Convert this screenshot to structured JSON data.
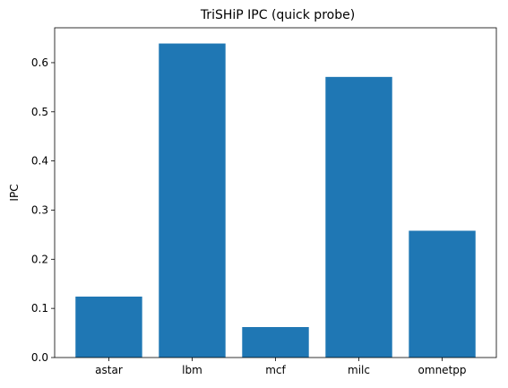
{
  "chart_data": {
    "type": "bar",
    "title": "TriSHiP IPC (quick probe)",
    "xlabel": "",
    "ylabel": "IPC",
    "categories": [
      "astar",
      "lbm",
      "mcf",
      "milc",
      "omnetpp"
    ],
    "values": [
      0.124,
      0.639,
      0.062,
      0.571,
      0.258
    ],
    "ylim": [
      0,
      0.671
    ],
    "yticks": [
      0.0,
      0.1,
      0.2,
      0.3,
      0.4,
      0.5,
      0.6
    ],
    "ytick_labels": [
      "0.0",
      "0.1",
      "0.2",
      "0.3",
      "0.4",
      "0.5",
      "0.6"
    ],
    "bar_color": "#1f77b4",
    "grid": false,
    "legend": false
  }
}
